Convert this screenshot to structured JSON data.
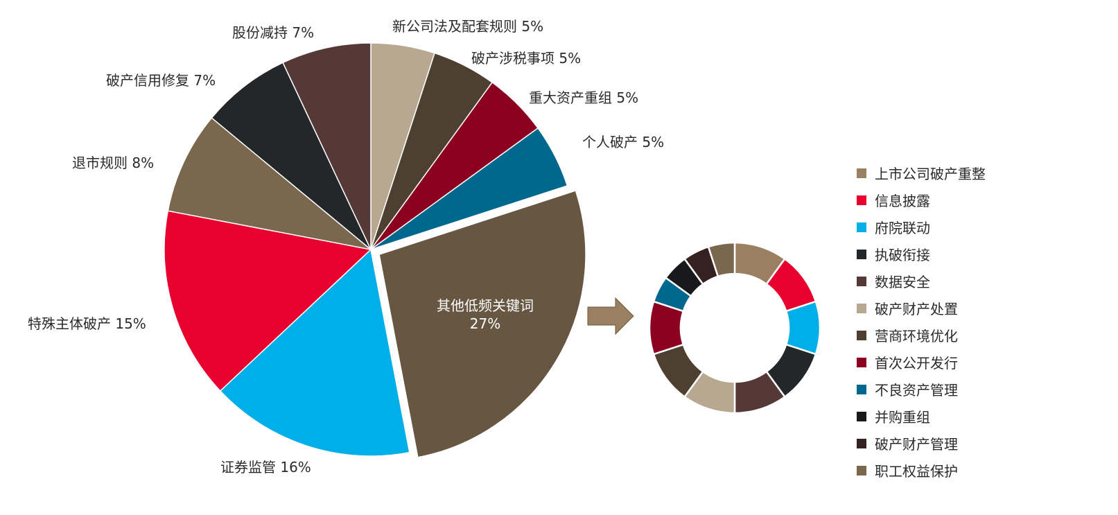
{
  "chart_data": [
    {
      "type": "pie",
      "slices": [
        {
          "label": "新公司法及配套规则",
          "value": 5,
          "display": "新公司法及配套规则 5%",
          "color": "#b9a891"
        },
        {
          "label": "破产涉税事项",
          "value": 5,
          "display": "破产涉税事项 5%",
          "color": "#4d4030"
        },
        {
          "label": "重大资产重组",
          "value": 5,
          "display": "重大资产重组 5%",
          "color": "#8c0020"
        },
        {
          "label": "个人破产",
          "value": 5,
          "display": "个人破产 5%",
          "color": "#00688c"
        },
        {
          "label": "其他低频关键词",
          "value": 27,
          "display": "27%",
          "color": "#675742",
          "exploded": true
        },
        {
          "label": "证券监管",
          "value": 16,
          "display": "证券监管 16%",
          "color": "#00aee8"
        },
        {
          "label": "特殊主体破产",
          "value": 15,
          "display": "特殊主体破产 15%",
          "color": "#e8002f"
        },
        {
          "label": "退市规则",
          "value": 8,
          "display": "退市规则 8%",
          "color": "#7a674d"
        },
        {
          "label": "破产信用修复",
          "value": 7,
          "display": "破产信用修复 7%",
          "color": "#24272a"
        },
        {
          "label": "股份减持",
          "value": 7,
          "display": "股份减持 7%",
          "color": "#553937"
        }
      ]
    },
    {
      "type": "pie",
      "donut": true,
      "legend_position": "right",
      "slices": [
        {
          "label": "上市公司破产重整",
          "value": 10,
          "color": "#9a7f60"
        },
        {
          "label": "信息披露",
          "value": 10,
          "color": "#e8002f"
        },
        {
          "label": "府院联动",
          "value": 10,
          "color": "#00aee8"
        },
        {
          "label": "执破衔接",
          "value": 10,
          "color": "#24272a"
        },
        {
          "label": "数据安全",
          "value": 10,
          "color": "#553937"
        },
        {
          "label": "破产财产处置",
          "value": 10,
          "color": "#b9a891"
        },
        {
          "label": "营商环境优化",
          "value": 10,
          "color": "#4d4030"
        },
        {
          "label": "首次公开发行",
          "value": 10,
          "color": "#8c0020"
        },
        {
          "label": "不良资产管理",
          "value": 5,
          "color": "#00688c"
        },
        {
          "label": "并购重组",
          "value": 5,
          "color": "#19191b"
        },
        {
          "label": "破产财产管理",
          "value": 5,
          "color": "#352220"
        },
        {
          "label": "职工权益保护",
          "value": 5,
          "color": "#7a674d"
        }
      ]
    }
  ],
  "arrow_color": "#9a7f60"
}
